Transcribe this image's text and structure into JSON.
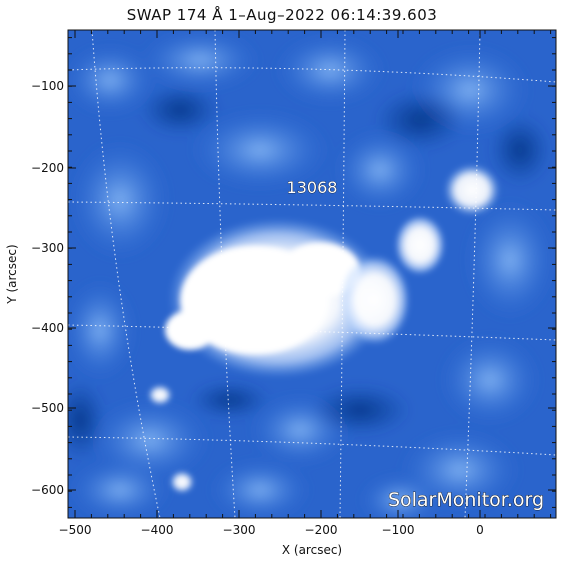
{
  "title": "SWAP 174 Å   1–Aug–2022 06:14:39.603",
  "x_axis": {
    "label": "X (arcsec)",
    "ticks": [
      "−500",
      "−400",
      "−300",
      "−200",
      "−100",
      "0"
    ]
  },
  "y_axis": {
    "label": "Y (arcsec)",
    "ticks": [
      "−100",
      "−200",
      "−300",
      "−400",
      "−500",
      "−600"
    ]
  },
  "active_region_label": "13068",
  "watermark": "SolarMonitor.org",
  "colors": {
    "deep_blue": "#0a3a96",
    "mid_blue": "#2f6fd8",
    "light_blue": "#8cbcf7",
    "bright": "#ffffff",
    "grid": "#ffffff"
  }
}
